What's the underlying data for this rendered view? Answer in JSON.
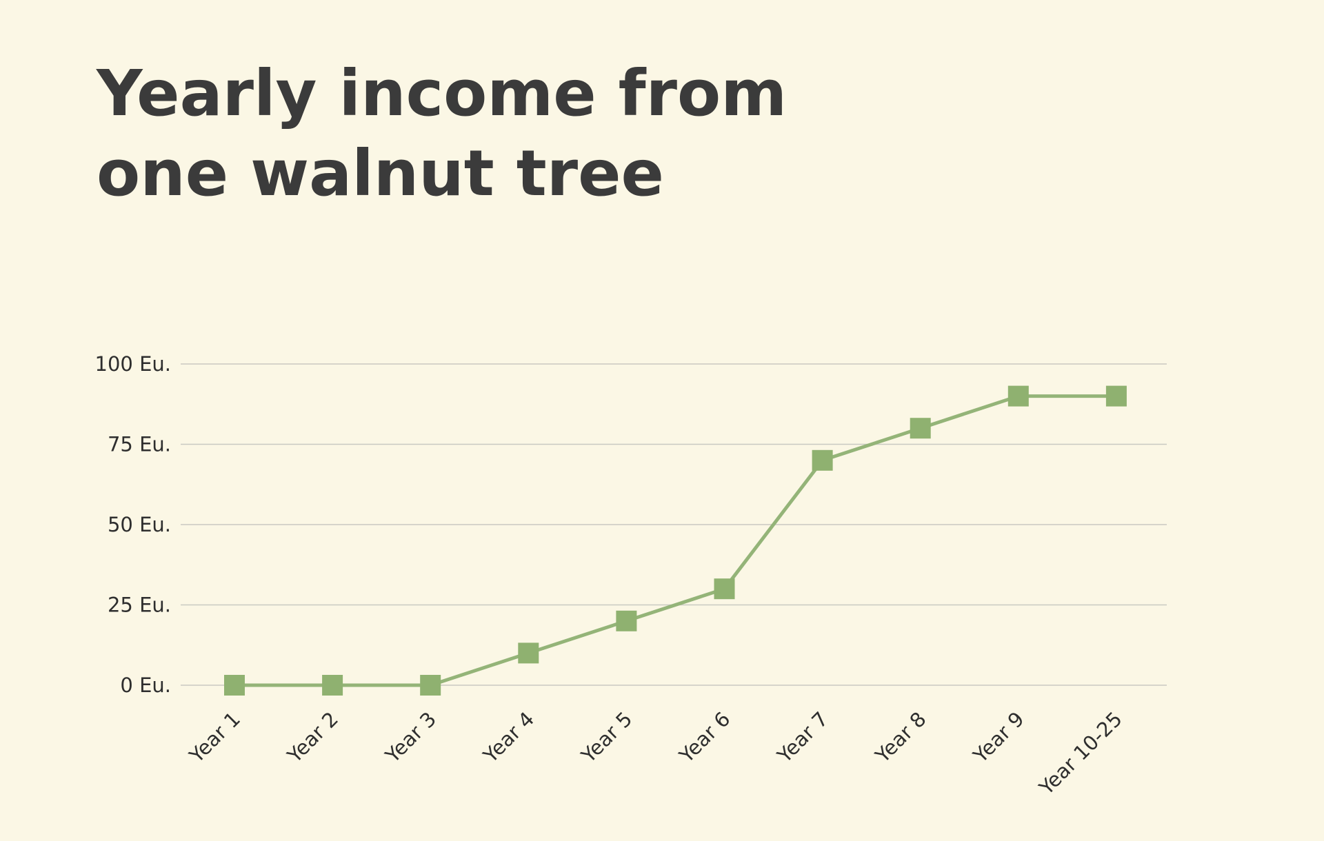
{
  "chart_data": {
    "type": "line",
    "title": "Yearly income from\none walnut tree",
    "categories": [
      "Year 1",
      "Year 2",
      "Year 3",
      "Year 4",
      "Year 5",
      "Year 6",
      "Year 7",
      "Year 8",
      "Year 9",
      "Year 10-25"
    ],
    "values": [
      0,
      0,
      0,
      10,
      20,
      30,
      70,
      80,
      90,
      90
    ],
    "ytick_labels": [
      "0 Eu.",
      "25 Eu.",
      "50 Eu.",
      "75 Eu.",
      "100 Eu."
    ],
    "ytick_values": [
      0,
      25,
      50,
      75,
      100
    ],
    "ylim": [
      0,
      100
    ],
    "unit": "Eu.",
    "grid": true,
    "legend": false,
    "marker": "square",
    "xlabel": "",
    "ylabel": "",
    "colors": {
      "background": "#fbf7e5",
      "title": "#3b3b3b",
      "line": "#94b478",
      "marker": "#8fb170",
      "grid": "#c9c9c2",
      "axis_text": "#2e2e2e"
    }
  }
}
